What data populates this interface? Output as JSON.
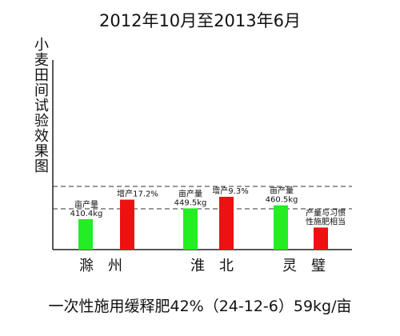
{
  "title": "2012年10月至2013年6月",
  "ylabel": "小麦田间试验效果图",
  "footer": "一次性施用缓释肥42%（24-12-6）59kg/亩",
  "colors": {
    "green": "#22ee22",
    "red": "#ee1111",
    "axis": "#222222"
  },
  "chart_data": {
    "type": "bar",
    "title": "2012年10月至2013年6月",
    "ylabel": "小麦田间试验效果图",
    "xlabel": "一次性施用缓释肥42%（24-12-6）59kg/亩",
    "legend": "none",
    "grid": false,
    "groups": [
      {
        "name": "滁　州",
        "bars": [
          {
            "color": "green",
            "value": 410.4,
            "label": [
              "亩产量",
              "410.4kg"
            ]
          },
          {
            "color": "red",
            "value": 481.0,
            "label": [
              "增产17.2%"
            ]
          }
        ]
      },
      {
        "name": "淮　北",
        "bars": [
          {
            "color": "green",
            "value": 449.5,
            "label": [
              "亩产量",
              "449.5kg"
            ]
          },
          {
            "color": "red",
            "value": 491.3,
            "label": [
              "增产9.3%"
            ]
          }
        ]
      },
      {
        "name": "灵　璧",
        "bars": [
          {
            "color": "green",
            "value": 460.5,
            "label": [
              "亩产量",
              "460.5kg"
            ]
          },
          {
            "color": "red",
            "value": 380.0,
            "label": [
              "产量与习惯",
              "性施肥相当"
            ]
          }
        ]
      }
    ]
  }
}
